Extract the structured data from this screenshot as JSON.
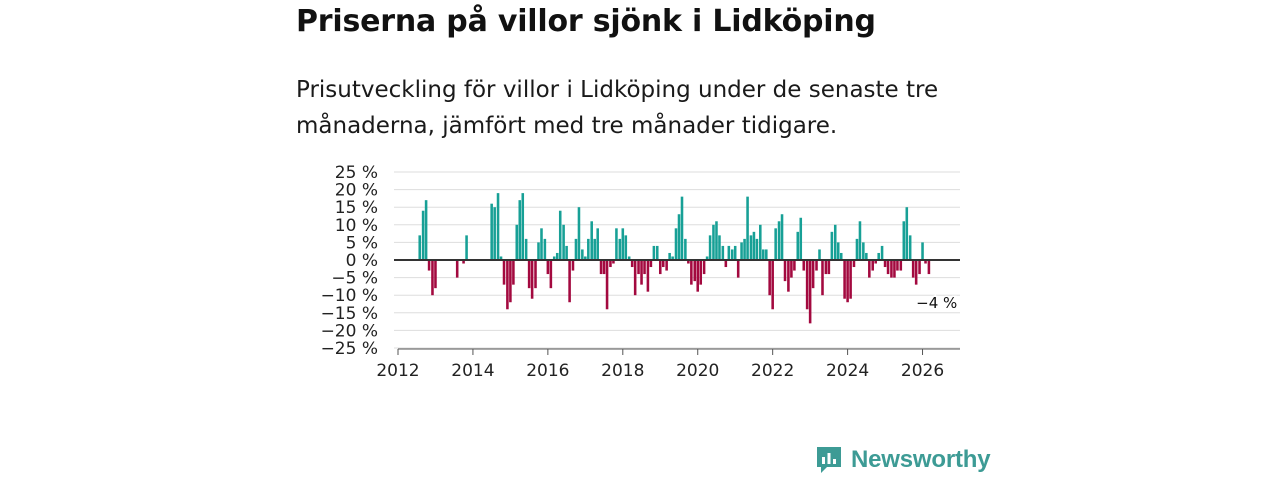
{
  "title": "Priserna på villor sjönk i Lidköping",
  "subtitle": "Prisutveckling för villor i Lidköping under de senaste tre månaderna, jämfört med tre månader tidigare.",
  "brand": {
    "name": "Newsworthy",
    "color": "#3d9b95"
  },
  "colors": {
    "positive": "#17a096",
    "negative": "#a3093f",
    "grid": "#dddddd",
    "zero": "#333333"
  },
  "chart_data": {
    "type": "bar",
    "title": "Priserna på villor sjönk i Lidköping",
    "xlabel": "",
    "ylabel": "",
    "ylim": [
      -25,
      25
    ],
    "xlim": [
      2012,
      2027
    ],
    "y_ticks": [
      25,
      20,
      15,
      10,
      5,
      0,
      -5,
      -10,
      -15,
      -20,
      -25
    ],
    "y_tick_labels": [
      "25 %",
      "20 %",
      "15 %",
      "10 %",
      "5 %",
      "0 %",
      "−5 %",
      "−10 %",
      "−15 %",
      "−20 %",
      "−25 %"
    ],
    "x_ticks": [
      2012,
      2014,
      2016,
      2018,
      2020,
      2022,
      2024,
      2026
    ],
    "x_tick_labels": [
      "2012",
      "2014",
      "2016",
      "2018",
      "2020",
      "2022",
      "2024",
      "2026"
    ],
    "annotation": {
      "text": "−4 %",
      "x": 2026.15,
      "y": -4
    },
    "series": [
      {
        "name": "Prisutveckling",
        "points": [
          [
            2012.58,
            7
          ],
          [
            2012.67,
            14
          ],
          [
            2012.75,
            17
          ],
          [
            2012.83,
            -3
          ],
          [
            2012.92,
            -10
          ],
          [
            2013.0,
            -8
          ],
          [
            2013.58,
            -5
          ],
          [
            2013.75,
            -1
          ],
          [
            2013.83,
            7
          ],
          [
            2014.5,
            16
          ],
          [
            2014.58,
            15
          ],
          [
            2014.67,
            19
          ],
          [
            2014.75,
            1
          ],
          [
            2014.83,
            -7
          ],
          [
            2014.92,
            -14
          ],
          [
            2015.0,
            -12
          ],
          [
            2015.08,
            -7
          ],
          [
            2015.17,
            10
          ],
          [
            2015.25,
            17
          ],
          [
            2015.33,
            19
          ],
          [
            2015.42,
            6
          ],
          [
            2015.5,
            -8
          ],
          [
            2015.58,
            -11
          ],
          [
            2015.67,
            -8
          ],
          [
            2015.75,
            5
          ],
          [
            2015.83,
            9
          ],
          [
            2015.92,
            6
          ],
          [
            2016.0,
            -4
          ],
          [
            2016.08,
            -8
          ],
          [
            2016.17,
            1
          ],
          [
            2016.25,
            2
          ],
          [
            2016.33,
            14
          ],
          [
            2016.42,
            10
          ],
          [
            2016.5,
            4
          ],
          [
            2016.58,
            -12
          ],
          [
            2016.67,
            -3
          ],
          [
            2016.75,
            6
          ],
          [
            2016.83,
            15
          ],
          [
            2016.92,
            3
          ],
          [
            2017.0,
            1
          ],
          [
            2017.08,
            6
          ],
          [
            2017.17,
            11
          ],
          [
            2017.25,
            6
          ],
          [
            2017.33,
            9
          ],
          [
            2017.42,
            -4
          ],
          [
            2017.5,
            -4
          ],
          [
            2017.58,
            -14
          ],
          [
            2017.67,
            -2
          ],
          [
            2017.75,
            -1
          ],
          [
            2017.83,
            9
          ],
          [
            2017.92,
            6
          ],
          [
            2018.0,
            9
          ],
          [
            2018.08,
            7
          ],
          [
            2018.17,
            1
          ],
          [
            2018.25,
            -2
          ],
          [
            2018.33,
            -10
          ],
          [
            2018.42,
            -4
          ],
          [
            2018.5,
            -7
          ],
          [
            2018.58,
            -4
          ],
          [
            2018.67,
            -9
          ],
          [
            2018.75,
            -2
          ],
          [
            2018.83,
            4
          ],
          [
            2018.92,
            4
          ],
          [
            2019.0,
            -4
          ],
          [
            2019.08,
            -2
          ],
          [
            2019.17,
            -3
          ],
          [
            2019.25,
            2
          ],
          [
            2019.33,
            1
          ],
          [
            2019.42,
            9
          ],
          [
            2019.5,
            13
          ],
          [
            2019.58,
            18
          ],
          [
            2019.67,
            6
          ],
          [
            2019.75,
            -1
          ],
          [
            2019.83,
            -7
          ],
          [
            2019.92,
            -6
          ],
          [
            2020.0,
            -9
          ],
          [
            2020.08,
            -7
          ],
          [
            2020.17,
            -4
          ],
          [
            2020.25,
            1
          ],
          [
            2020.33,
            7
          ],
          [
            2020.42,
            10
          ],
          [
            2020.5,
            11
          ],
          [
            2020.58,
            7
          ],
          [
            2020.67,
            4
          ],
          [
            2020.75,
            -2
          ],
          [
            2020.83,
            4
          ],
          [
            2020.92,
            3
          ],
          [
            2021.0,
            4
          ],
          [
            2021.08,
            -5
          ],
          [
            2021.17,
            5
          ],
          [
            2021.25,
            6
          ],
          [
            2021.33,
            18
          ],
          [
            2021.42,
            7
          ],
          [
            2021.5,
            8
          ],
          [
            2021.58,
            6
          ],
          [
            2021.67,
            10
          ],
          [
            2021.75,
            3
          ],
          [
            2021.83,
            3
          ],
          [
            2021.92,
            -10
          ],
          [
            2022.0,
            -14
          ],
          [
            2022.08,
            9
          ],
          [
            2022.17,
            11
          ],
          [
            2022.25,
            13
          ],
          [
            2022.33,
            -6
          ],
          [
            2022.42,
            -9
          ],
          [
            2022.5,
            -5
          ],
          [
            2022.58,
            -3
          ],
          [
            2022.67,
            8
          ],
          [
            2022.75,
            12
          ],
          [
            2022.83,
            -3
          ],
          [
            2022.92,
            -14
          ],
          [
            2023.0,
            -18
          ],
          [
            2023.08,
            -8
          ],
          [
            2023.17,
            -3
          ],
          [
            2023.25,
            3
          ],
          [
            2023.33,
            -10
          ],
          [
            2023.42,
            -4
          ],
          [
            2023.5,
            -4
          ],
          [
            2023.58,
            8
          ],
          [
            2023.67,
            10
          ],
          [
            2023.75,
            5
          ],
          [
            2023.83,
            2
          ],
          [
            2023.92,
            -11
          ],
          [
            2024.0,
            -12
          ],
          [
            2024.08,
            -11
          ],
          [
            2024.17,
            -2
          ],
          [
            2024.25,
            6
          ],
          [
            2024.33,
            11
          ],
          [
            2024.42,
            5
          ],
          [
            2024.5,
            2
          ],
          [
            2024.58,
            -5
          ],
          [
            2024.67,
            -3
          ],
          [
            2024.75,
            -1
          ],
          [
            2024.83,
            2
          ],
          [
            2024.92,
            4
          ],
          [
            2025.0,
            -2
          ],
          [
            2025.08,
            -4
          ],
          [
            2025.17,
            -5
          ],
          [
            2025.25,
            -5
          ],
          [
            2025.33,
            -3
          ],
          [
            2025.42,
            -3
          ],
          [
            2025.5,
            11
          ],
          [
            2025.58,
            15
          ],
          [
            2025.67,
            7
          ],
          [
            2025.75,
            -5
          ],
          [
            2025.83,
            -7
          ],
          [
            2025.92,
            -4
          ],
          [
            2026.0,
            5
          ],
          [
            2026.08,
            -1
          ],
          [
            2026.17,
            -4
          ]
        ]
      }
    ]
  }
}
